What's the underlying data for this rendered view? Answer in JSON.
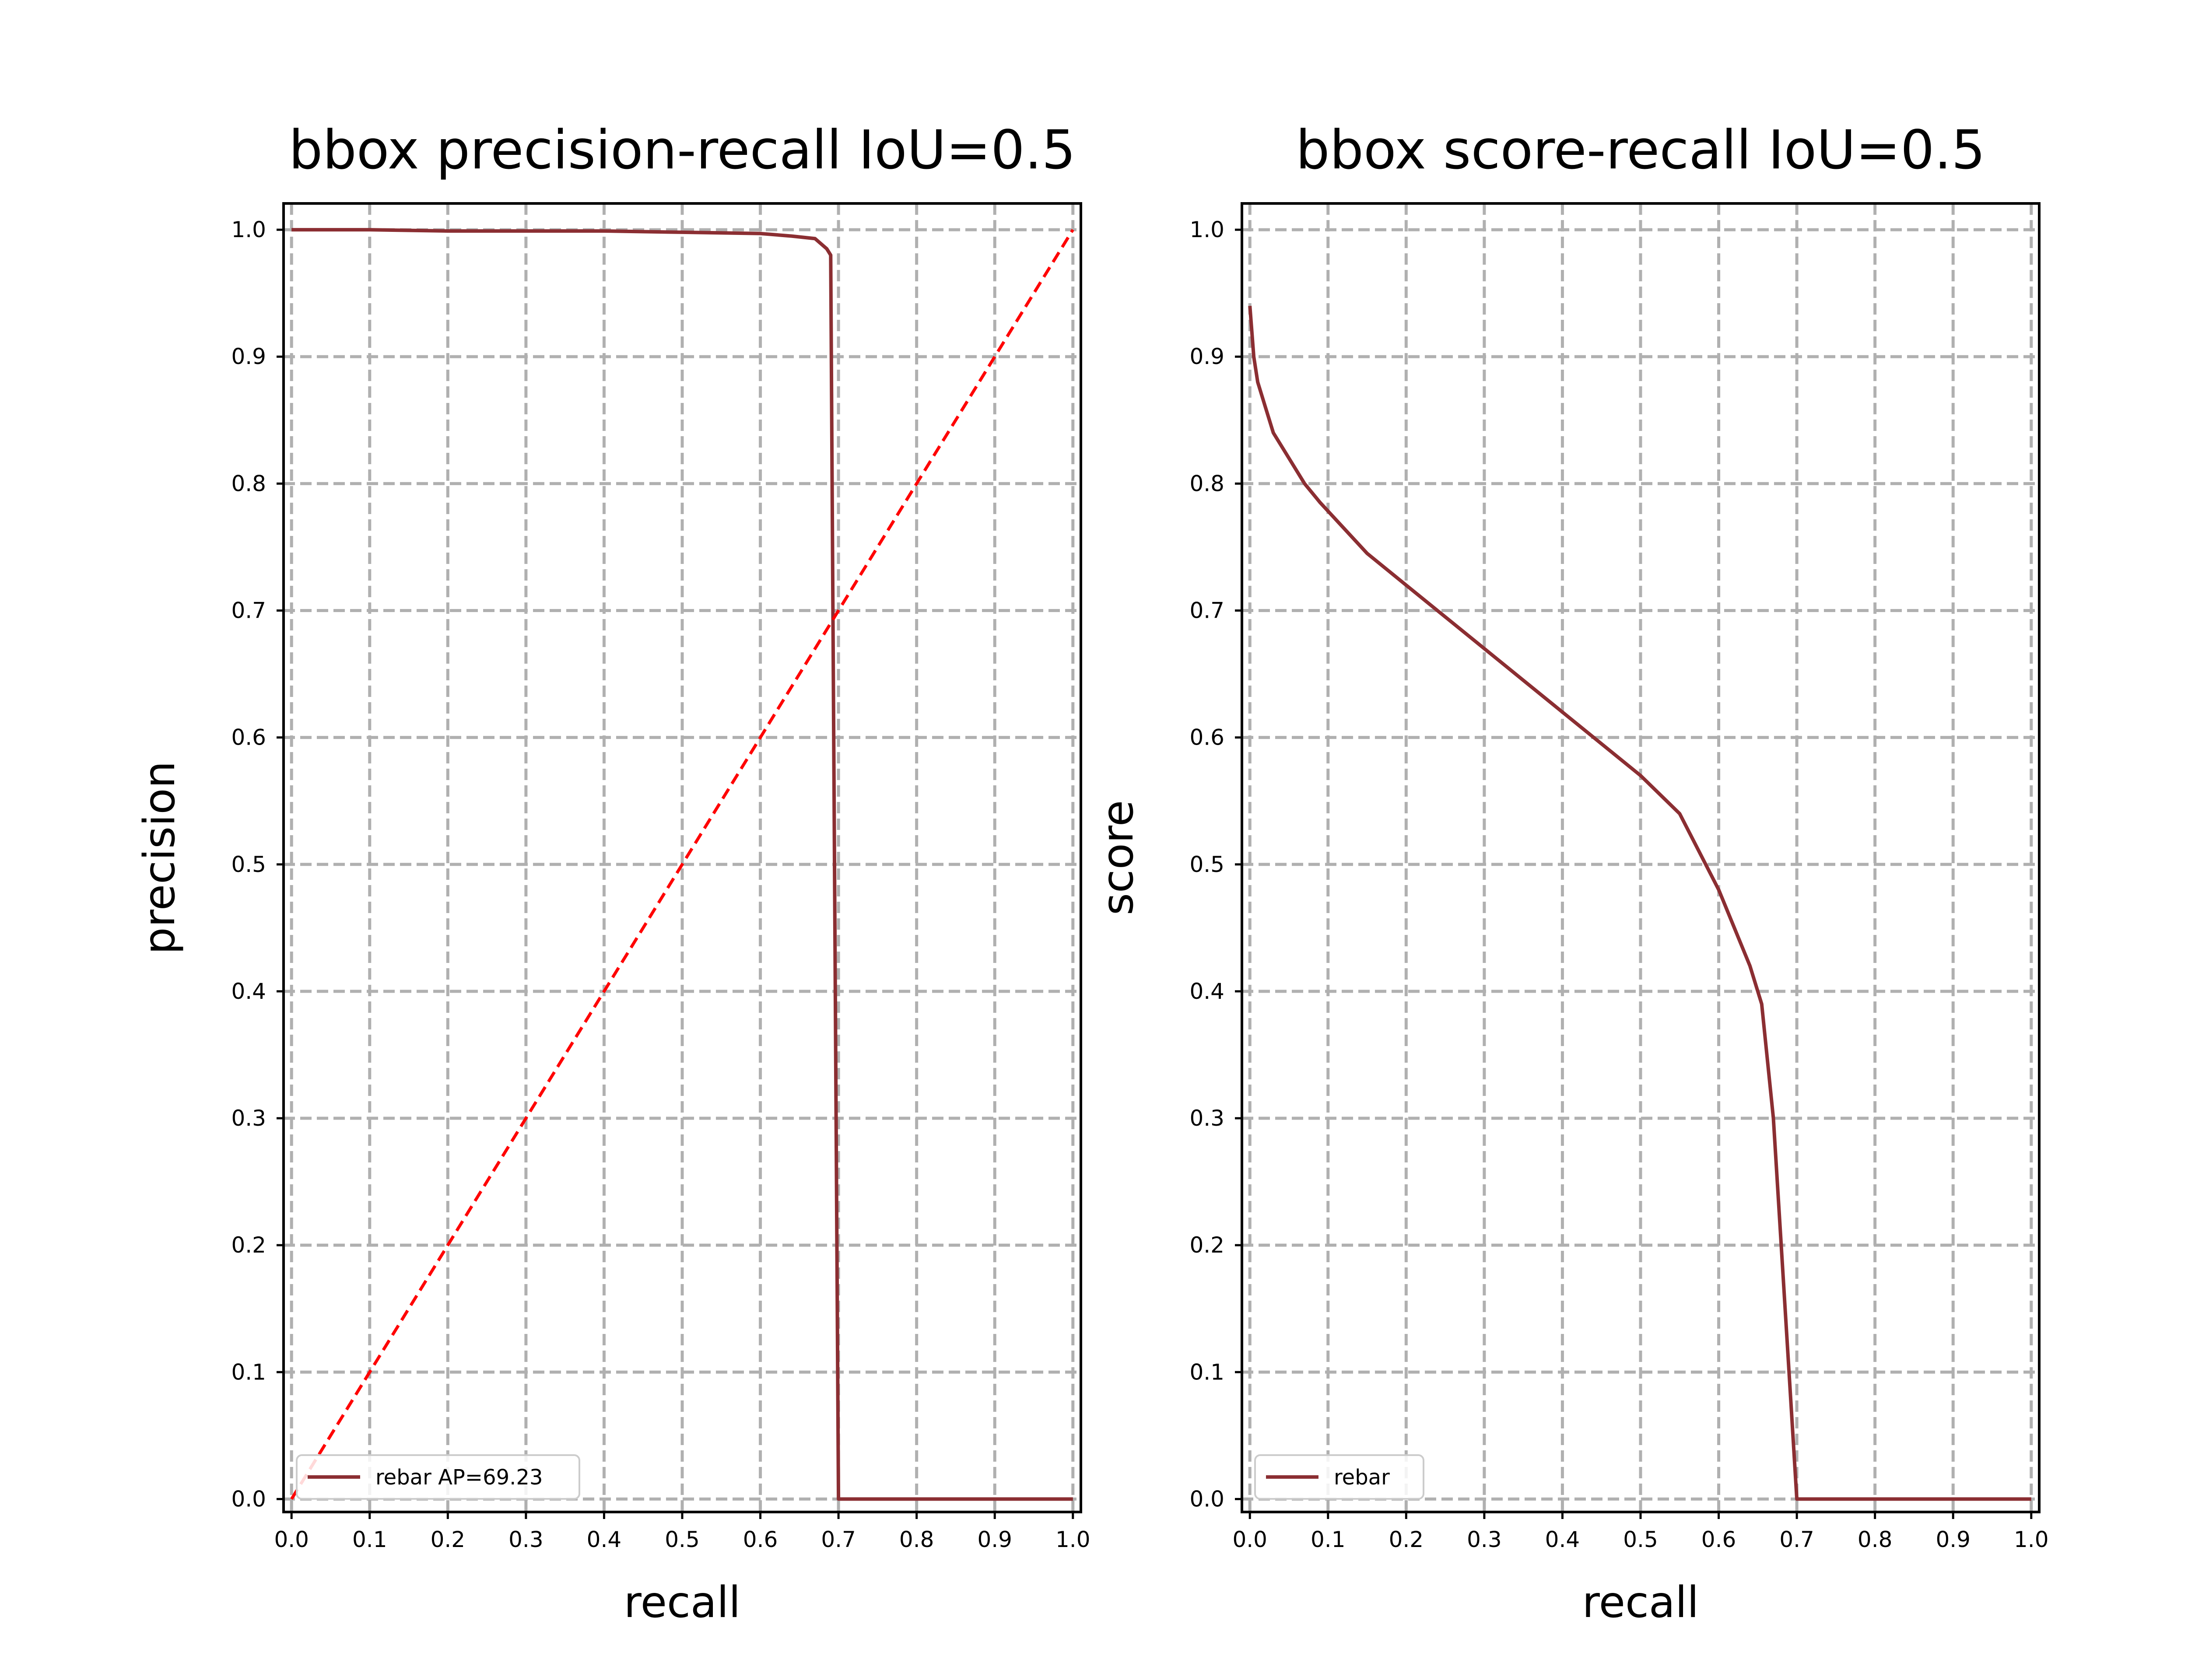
{
  "chart_data": [
    {
      "type": "line",
      "title": "bbox precision-recall IoU=0.5",
      "xlabel": "recall",
      "ylabel": "precision",
      "xlim": [
        0.0,
        1.0
      ],
      "ylim": [
        0.0,
        1.0
      ],
      "xticks": [
        "0.0",
        "0.1",
        "0.2",
        "0.3",
        "0.4",
        "0.5",
        "0.6",
        "0.7",
        "0.8",
        "0.9",
        "1.0"
      ],
      "yticks": [
        "0.0",
        "0.1",
        "0.2",
        "0.3",
        "0.4",
        "0.5",
        "0.6",
        "0.7",
        "0.8",
        "0.9",
        "1.0"
      ],
      "grid": true,
      "legend_position": "lower-left",
      "series": [
        {
          "name": "rebar AP=69.23",
          "color": "#8b2e32",
          "x": [
            0.0,
            0.05,
            0.1,
            0.2,
            0.3,
            0.4,
            0.5,
            0.6,
            0.64,
            0.67,
            0.685,
            0.69,
            0.7,
            0.7,
            0.8,
            0.9,
            1.0
          ],
          "y": [
            1.0,
            1.0,
            1.0,
            0.999,
            0.999,
            0.999,
            0.998,
            0.997,
            0.995,
            0.993,
            0.985,
            0.98,
            0.0,
            0.0,
            0.0,
            0.0,
            0.0
          ]
        },
        {
          "name": "",
          "color": "#ff0000",
          "style": "dashed",
          "x": [
            0.0,
            1.0
          ],
          "y": [
            0.0,
            1.0
          ]
        }
      ]
    },
    {
      "type": "line",
      "title": "bbox score-recall IoU=0.5",
      "xlabel": "recall",
      "ylabel": "score",
      "xlim": [
        0.0,
        1.0
      ],
      "ylim": [
        0.0,
        1.0
      ],
      "xticks": [
        "0.0",
        "0.1",
        "0.2",
        "0.3",
        "0.4",
        "0.5",
        "0.6",
        "0.7",
        "0.8",
        "0.9",
        "1.0"
      ],
      "yticks": [
        "0.0",
        "0.1",
        "0.2",
        "0.3",
        "0.4",
        "0.5",
        "0.6",
        "0.7",
        "0.8",
        "0.9",
        "1.0"
      ],
      "grid": true,
      "legend_position": "lower-left",
      "series": [
        {
          "name": "rebar",
          "color": "#8b2e32",
          "x": [
            0.0,
            0.005,
            0.01,
            0.02,
            0.03,
            0.05,
            0.07,
            0.09,
            0.12,
            0.15,
            0.2,
            0.25,
            0.3,
            0.35,
            0.4,
            0.45,
            0.5,
            0.55,
            0.6,
            0.62,
            0.64,
            0.655,
            0.67,
            0.68,
            0.69,
            0.695,
            0.7,
            0.75,
            0.8,
            0.9,
            1.0
          ],
          "y": [
            0.94,
            0.9,
            0.88,
            0.86,
            0.84,
            0.82,
            0.8,
            0.785,
            0.765,
            0.745,
            0.72,
            0.695,
            0.67,
            0.645,
            0.62,
            0.595,
            0.57,
            0.54,
            0.48,
            0.45,
            0.42,
            0.39,
            0.3,
            0.2,
            0.1,
            0.05,
            0.0,
            0.0,
            0.0,
            0.0,
            0.0
          ]
        }
      ]
    }
  ]
}
